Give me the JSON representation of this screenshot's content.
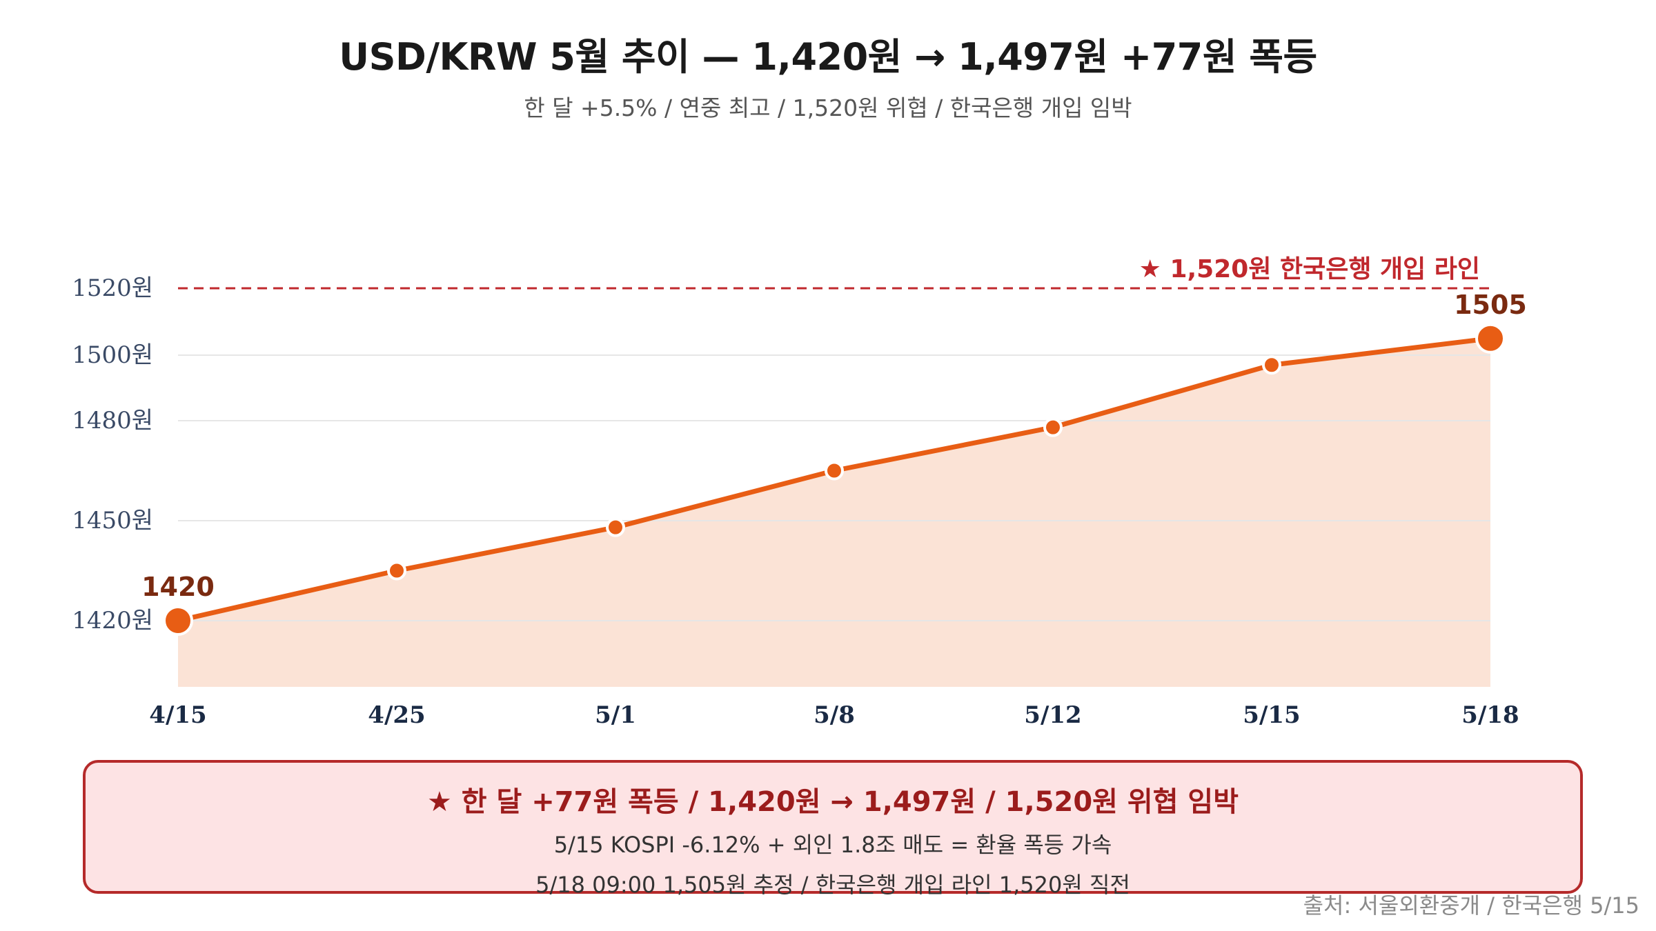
{
  "header": {
    "title": "USD/KRW 5월 추이 — 1,420원 → 1,497원 +77원 폭등",
    "subtitle": "한 달 +5.5% / 연중 최고 / 1,520원 위협 / 한국은행 개입 임박"
  },
  "chart_data": {
    "type": "area",
    "categories": [
      "4/15",
      "4/25",
      "5/1",
      "5/8",
      "5/12",
      "5/15",
      "5/18"
    ],
    "series": [
      {
        "values": [
          1420,
          1435,
          1448,
          1465,
          1478,
          1497,
          1505
        ]
      }
    ],
    "ylim": [
      1400,
      1530
    ],
    "y_ticks": [
      1420,
      1450,
      1480,
      1500,
      1520
    ],
    "y_tick_labels": [
      "1420원",
      "1450원",
      "1480원",
      "1500원",
      "1520원"
    ],
    "point_labels": [
      {
        "index": 0,
        "text": "1420"
      },
      {
        "index": 6,
        "text": "1505"
      }
    ],
    "reference_line": {
      "value": 1520,
      "label": "★ 1,520원 한국은행 개입 라인"
    },
    "grid": true,
    "colors": {
      "line": "#e85d14",
      "fill": "#fbe3d6",
      "reference": "#c0282d",
      "label": "#7a2a10",
      "grid": "#e6e6e6",
      "ytick": "#3a4a66",
      "xtick": "#1a2a44"
    }
  },
  "callout": {
    "headline": "★ 한 달 +77원 폭등 / 1,420원 → 1,497원 / 1,520원 위협 임박",
    "line1": "5/15 KOSPI -6.12% + 외인 1.8조 매도 = 환율 폭등 가속",
    "line2": "5/18 09:00 1,505원 추정 / 한국은행 개입 라인 1,520원 직전"
  },
  "source": "출처: 서울외환중개 / 한국은행 5/15"
}
